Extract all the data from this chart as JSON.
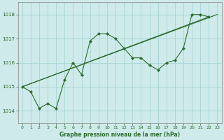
{
  "title": "Graphe pression niveau de la mer (hPa)",
  "background_color": "#ceeaea",
  "grid_color": "#a8d4d4",
  "line_color": "#2d6b2d",
  "xlim": [
    -0.5,
    23.5
  ],
  "ylim": [
    1013.5,
    1018.5
  ],
  "yticks": [
    1014,
    1015,
    1016,
    1017,
    1018
  ],
  "xticks": [
    0,
    1,
    2,
    3,
    4,
    5,
    6,
    7,
    8,
    9,
    10,
    11,
    12,
    13,
    14,
    15,
    16,
    17,
    18,
    19,
    20,
    21,
    22,
    23
  ],
  "series1_x": [
    0,
    1,
    2,
    3,
    4,
    5,
    6,
    7,
    8,
    9,
    10,
    11,
    12,
    13,
    14,
    15,
    16,
    17,
    18,
    19,
    20,
    21,
    22
  ],
  "series1_y": [
    1015.0,
    1014.8,
    1014.1,
    1014.3,
    1014.1,
    1015.3,
    1016.0,
    1015.5,
    1016.9,
    1017.2,
    1017.2,
    1017.0,
    1016.6,
    1016.2,
    1016.2,
    1015.9,
    1015.7,
    1016.0,
    1016.1,
    1016.6,
    1018.0,
    1018.0,
    1017.9
  ],
  "trend1_x": [
    0,
    22
  ],
  "trend1_y": [
    1015.0,
    1017.9
  ],
  "trend2_x": [
    0,
    23
  ],
  "trend2_y": [
    1015.0,
    1018.0
  ]
}
